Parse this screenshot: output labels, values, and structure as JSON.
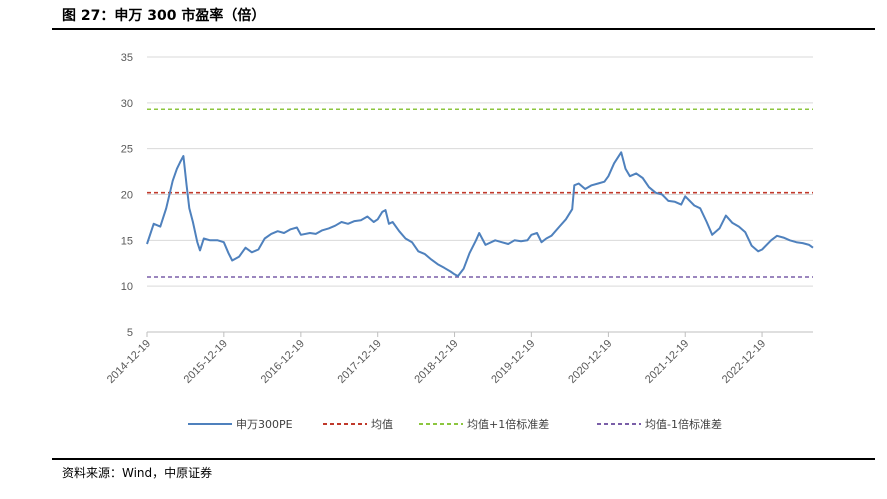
{
  "figure": {
    "title": "图 27：申万 300 市盈率（倍）",
    "source": "资料来源：Wind，中原证券"
  },
  "colors": {
    "pe": "#4f81bd",
    "mean": "#c0392b",
    "plus1": "#8cc63f",
    "minus1": "#7a5ea8",
    "grid": "#d9d9d9"
  },
  "chart_data": {
    "type": "line",
    "title": "",
    "xlabel": "",
    "ylabel": "",
    "ylim": [
      5,
      35
    ],
    "yticks": [
      5,
      10,
      15,
      20,
      25,
      30,
      35
    ],
    "xlim": [
      "2014-12-19",
      "2023-08-18"
    ],
    "xticks": [
      "2014-12-19",
      "2015-12-19",
      "2016-12-19",
      "2017-12-19",
      "2018-12-19",
      "2019-12-19",
      "2020-12-19",
      "2021-12-19",
      "2022-12-19"
    ],
    "grid": "horizontal",
    "legend_position": "bottom",
    "series": [
      {
        "name": "申万300PE",
        "style": "solid",
        "x": [
          "2014-12-19",
          "2015-01-20",
          "2015-02-20",
          "2015-03-20",
          "2015-04-20",
          "2015-05-10",
          "2015-05-25",
          "2015-06-10",
          "2015-06-25",
          "2015-07-08",
          "2015-07-25",
          "2015-08-15",
          "2015-08-28",
          "2015-09-15",
          "2015-10-15",
          "2015-11-20",
          "2015-12-19",
          "2016-01-10",
          "2016-01-28",
          "2016-02-29",
          "2016-03-31",
          "2016-04-30",
          "2016-05-31",
          "2016-06-30",
          "2016-07-31",
          "2016-08-31",
          "2016-09-30",
          "2016-10-31",
          "2016-11-30",
          "2016-12-19",
          "2017-01-31",
          "2017-02-28",
          "2017-03-31",
          "2017-04-30",
          "2017-05-31",
          "2017-06-30",
          "2017-07-31",
          "2017-08-31",
          "2017-09-30",
          "2017-10-31",
          "2017-11-30",
          "2017-12-19",
          "2018-01-10",
          "2018-01-25",
          "2018-02-10",
          "2018-02-28",
          "2018-03-31",
          "2018-04-30",
          "2018-05-31",
          "2018-06-30",
          "2018-07-31",
          "2018-08-31",
          "2018-09-30",
          "2018-10-31",
          "2018-11-30",
          "2018-12-19",
          "2019-01-04",
          "2019-01-31",
          "2019-02-28",
          "2019-03-31",
          "2019-04-15",
          "2019-05-15",
          "2019-06-30",
          "2019-07-31",
          "2019-08-31",
          "2019-09-30",
          "2019-10-31",
          "2019-11-30",
          "2019-12-19",
          "2020-01-15",
          "2020-02-05",
          "2020-02-28",
          "2020-03-23",
          "2020-04-30",
          "2020-05-31",
          "2020-06-30",
          "2020-07-10",
          "2020-07-31",
          "2020-08-31",
          "2020-09-30",
          "2020-10-31",
          "2020-11-30",
          "2020-12-19",
          "2021-01-15",
          "2021-02-18",
          "2021-03-10",
          "2021-03-31",
          "2021-04-30",
          "2021-05-31",
          "2021-06-30",
          "2021-07-31",
          "2021-08-31",
          "2021-09-30",
          "2021-10-31",
          "2021-11-30",
          "2021-12-19",
          "2022-01-31",
          "2022-02-28",
          "2022-03-31",
          "2022-04-26",
          "2022-05-31",
          "2022-06-30",
          "2022-07-31",
          "2022-08-31",
          "2022-09-30",
          "2022-10-31",
          "2022-11-30",
          "2022-12-19",
          "2023-01-31",
          "2023-02-28",
          "2023-03-31",
          "2023-04-30",
          "2023-05-31",
          "2023-06-30",
          "2023-07-31",
          "2023-08-18"
        ],
        "values": [
          14.6,
          16.8,
          16.5,
          18.5,
          21.5,
          22.8,
          23.5,
          24.2,
          21.0,
          18.5,
          17.0,
          14.8,
          13.9,
          15.2,
          15.0,
          15.0,
          14.8,
          13.6,
          12.8,
          13.2,
          14.2,
          13.7,
          14.0,
          15.2,
          15.7,
          16.0,
          15.8,
          16.2,
          16.4,
          15.6,
          15.8,
          15.7,
          16.1,
          16.3,
          16.6,
          17.0,
          16.8,
          17.1,
          17.2,
          17.6,
          17.0,
          17.3,
          18.1,
          18.3,
          16.8,
          17.0,
          16.0,
          15.2,
          14.8,
          13.8,
          13.5,
          12.9,
          12.4,
          12.0,
          11.6,
          11.3,
          11.1,
          11.9,
          13.6,
          15.0,
          15.8,
          14.5,
          15.0,
          14.8,
          14.6,
          15.0,
          14.9,
          15.0,
          15.6,
          15.8,
          14.8,
          15.2,
          15.5,
          16.5,
          17.3,
          18.4,
          21.0,
          21.2,
          20.6,
          21.0,
          21.2,
          21.4,
          22.0,
          23.4,
          24.6,
          22.8,
          22.0,
          22.3,
          21.8,
          20.8,
          20.2,
          20.0,
          19.3,
          19.2,
          18.9,
          19.8,
          18.8,
          18.5,
          17.0,
          15.6,
          16.3,
          17.7,
          16.9,
          16.5,
          15.9,
          14.4,
          13.8,
          14.0,
          15.0,
          15.5,
          15.3,
          15.0,
          14.8,
          14.7,
          14.5,
          14.2
        ]
      },
      {
        "name": "均值",
        "style": "dashed",
        "value": 20.2
      },
      {
        "name": "均值+1倍标准差",
        "style": "dashed",
        "value": 29.3
      },
      {
        "name": "均值-1倍标准差",
        "style": "dashed",
        "value": 11.0
      }
    ]
  }
}
